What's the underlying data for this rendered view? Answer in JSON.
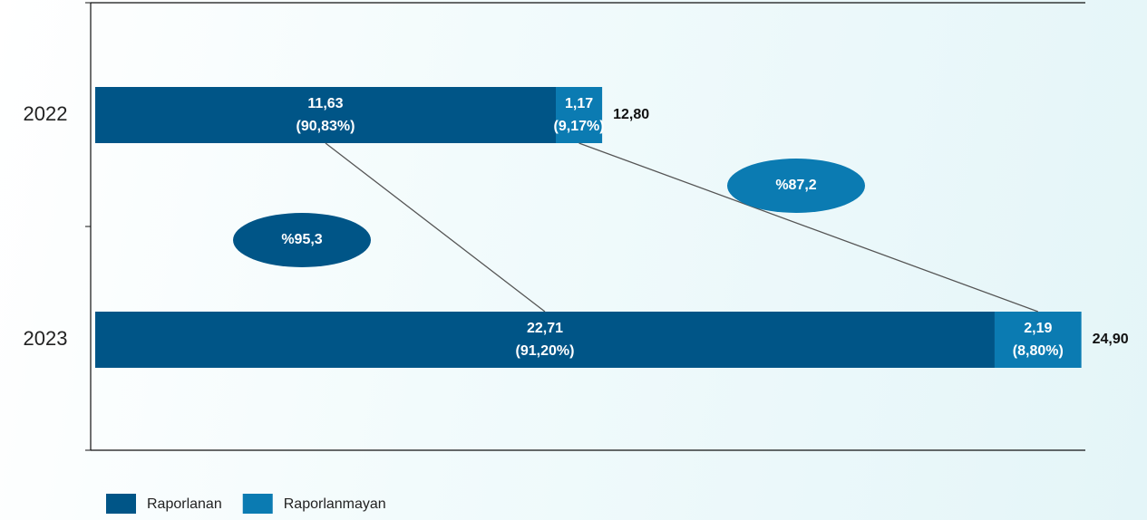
{
  "chart_data": {
    "type": "stacked-bar-horizontal",
    "categories": [
      "2022",
      "2023"
    ],
    "series": [
      {
        "name": "Raporlanan",
        "color": "#005587",
        "values": [
          11.63,
          22.71
        ],
        "value_labels": [
          "11,63",
          "22,71"
        ],
        "share_labels": [
          "(90,83%)",
          "(91,20%)"
        ]
      },
      {
        "name": "Raporlanmayan",
        "color": "#0b7bb2",
        "values": [
          1.17,
          2.19
        ],
        "value_labels": [
          "1,17",
          "2,19"
        ],
        "share_labels": [
          "(9,17%)",
          "(8,80%)"
        ]
      }
    ],
    "totals": [
      12.8,
      24.9
    ],
    "total_labels": [
      "12,80",
      "24,90"
    ],
    "annotations": [
      "%95,3",
      "%87,2"
    ],
    "xlim": [
      0,
      25
    ]
  }
}
